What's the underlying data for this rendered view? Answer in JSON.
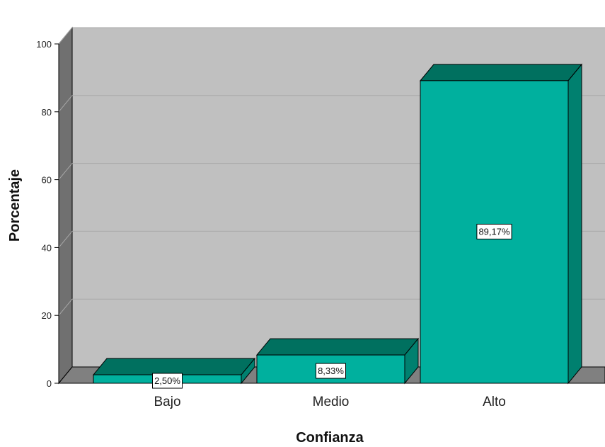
{
  "chart_data": {
    "type": "bar",
    "style": "3d",
    "categories": [
      "Bajo",
      "Medio",
      "Alto"
    ],
    "values": [
      2.5,
      8.33,
      89.17
    ],
    "data_labels": [
      "2,50%",
      "8,33%",
      "89,17%"
    ],
    "xlabel": "Confianza",
    "ylabel": "Porcentaje",
    "ylim": [
      0,
      100
    ],
    "yticks": [
      0,
      20,
      40,
      60,
      80,
      100
    ],
    "grid": true,
    "legend": "none"
  },
  "colors": {
    "bar_front": "#00b09e",
    "bar_top": "#00705f",
    "bar_side": "#00806f",
    "plot_back": "#c0c0c0",
    "wall_left": "#707070",
    "floor": "#808080",
    "gridline": "#a8a8a8"
  }
}
